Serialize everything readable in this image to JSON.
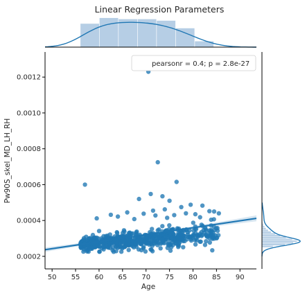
{
  "chart_data": {
    "type": "scatter",
    "title": "Linear Regression Parameters",
    "xlabel": "Age",
    "ylabel": "Pw90S_skel_MD_LH_RH",
    "xlim": [
      48.5,
      93.5
    ],
    "ylim": [
      0.00013,
      0.00134
    ],
    "xticks": [
      50,
      55,
      60,
      65,
      70,
      75,
      80,
      85,
      90
    ],
    "yticks": [
      0.0002,
      0.0004,
      0.0006,
      0.0008,
      0.001,
      0.0012
    ],
    "ytick_labels": [
      "0.0002",
      "0.0004",
      "0.0006",
      "0.0008",
      "0.0010",
      "0.0012"
    ],
    "legend": {
      "text": "pearsonr = 0.4; p = 2.8e-27",
      "placement": "upper-right"
    },
    "regression": {
      "x": [
        48.5,
        93.5
      ],
      "y": [
        0.000237,
        0.000412
      ]
    },
    "marginal_x_hist": {
      "bin_edges": [
        56,
        60.06,
        64.12,
        68.18,
        72.24,
        76.3,
        80.36,
        84.42
      ],
      "density": [
        0.78,
        0.97,
        0.93,
        0.93,
        0.88,
        0.63,
        0.2
      ]
    },
    "marginal_y_hist": {
      "bin_edges": [
        0.00025,
        0.00026,
        0.00027,
        0.00028,
        0.00029,
        0.0003,
        0.00031,
        0.00032,
        0.00033,
        0.00034,
        0.00035,
        0.00036,
        0.00037,
        0.00038,
        0.00039,
        0.0004
      ],
      "density": [
        0.3,
        0.62,
        0.85,
        0.95,
        0.82,
        0.65,
        0.5,
        0.36,
        0.25,
        0.17,
        0.11,
        0.07,
        0.04,
        0.02,
        0.01
      ]
    },
    "outliers": [
      {
        "x": 70.5,
        "y": 0.00123
      },
      {
        "x": 72.5,
        "y": 0.000725
      },
      {
        "x": 76.5,
        "y": 0.000615
      },
      {
        "x": 57.0,
        "y": 0.0006
      },
      {
        "x": 71.0,
        "y": 0.000548
      },
      {
        "x": 73.5,
        "y": 0.000535
      },
      {
        "x": 68.5,
        "y": 0.00052
      },
      {
        "x": 75.0,
        "y": 0.00051
      },
      {
        "x": 79.5,
        "y": 0.000488
      },
      {
        "x": 82.0,
        "y": 0.000483
      },
      {
        "x": 77.5,
        "y": 0.000475
      },
      {
        "x": 74.0,
        "y": 0.000462
      },
      {
        "x": 71.5,
        "y": 0.000455
      },
      {
        "x": 84.5,
        "y": 0.00045
      },
      {
        "x": 66.0,
        "y": 0.000445
      },
      {
        "x": 83.5,
        "y": 0.000452
      },
      {
        "x": 80.5,
        "y": 0.000435
      },
      {
        "x": 62.5,
        "y": 0.000432
      },
      {
        "x": 78.5,
        "y": 0.00044
      },
      {
        "x": 69.5,
        "y": 0.000438
      },
      {
        "x": 85.5,
        "y": 0.00044
      },
      {
        "x": 72.0,
        "y": 0.000428
      },
      {
        "x": 64.0,
        "y": 0.000422
      },
      {
        "x": 76.0,
        "y": 0.00043
      },
      {
        "x": 81.5,
        "y": 0.000418
      },
      {
        "x": 59.5,
        "y": 0.000412
      },
      {
        "x": 74.5,
        "y": 0.000415
      },
      {
        "x": 67.5,
        "y": 0.000408
      }
    ],
    "cluster": {
      "x_range": [
        56,
        85.5
      ],
      "n": 620,
      "y_intercept": 0.000265,
      "y_slope": 2.2e-06,
      "x_center": 56,
      "y_spread": 2.8e-05
    },
    "colors": {
      "points": "#1f77b4",
      "line": "#1f77b4",
      "hist_fill": "#a9c6e0",
      "kde": "#1f77b4",
      "axes": "#000000"
    }
  }
}
